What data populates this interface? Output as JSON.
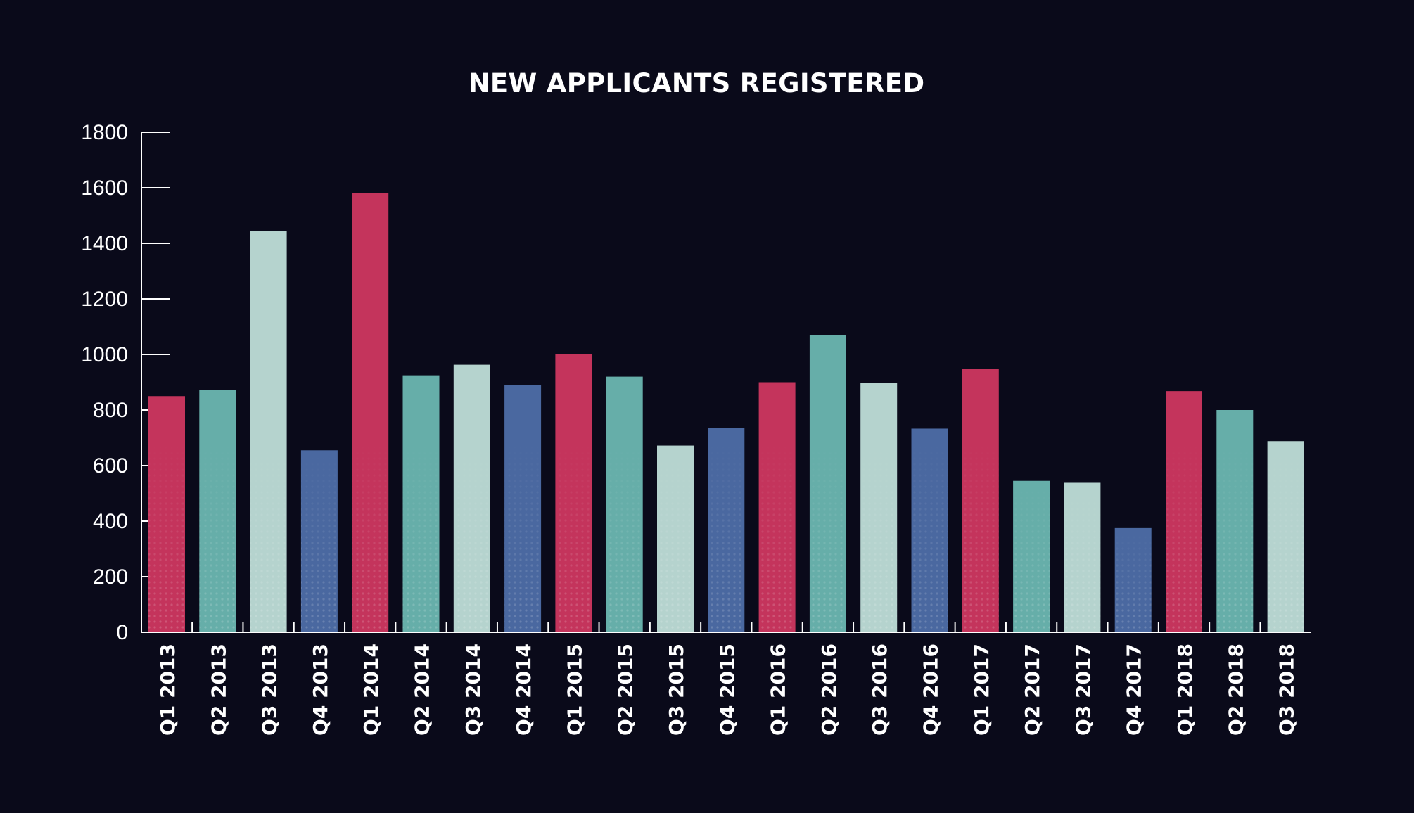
{
  "chart_data": {
    "type": "bar",
    "title": "NEW APPLICANTS REGISTERED",
    "xlabel": "",
    "ylabel": "",
    "ylim": [
      0,
      1800
    ],
    "yticks": [
      0,
      200,
      400,
      600,
      800,
      1000,
      1200,
      1400,
      1600,
      1800
    ],
    "grid": false,
    "legend": "none",
    "categories": [
      "Q1 2013",
      "Q2 2013",
      "Q3 2013",
      "Q4 2013",
      "Q1 2014",
      "Q2 2014",
      "Q3 2014",
      "Q4 2014",
      "Q1 2015",
      "Q2 2015",
      "Q3 2015",
      "Q4 2015",
      "Q1 2016",
      "Q2 2016",
      "Q3 2016",
      "Q4 2016",
      "Q1 2017",
      "Q2 2017",
      "Q3 2017",
      "Q4 2017",
      "Q1 2018",
      "Q2 2018",
      "Q3 2018"
    ],
    "values": [
      850,
      873,
      1445,
      655,
      1580,
      925,
      963,
      890,
      1000,
      920,
      672,
      735,
      900,
      1070,
      897,
      733,
      948,
      545,
      538,
      375,
      868,
      800,
      688
    ],
    "bar_colors": [
      "#c4345c",
      "#66aea9",
      "#b5d3ce",
      "#4a68a0"
    ]
  },
  "colors": {
    "background": "#0a0a1a",
    "axis": "#ffffff",
    "text": "#ffffff"
  }
}
